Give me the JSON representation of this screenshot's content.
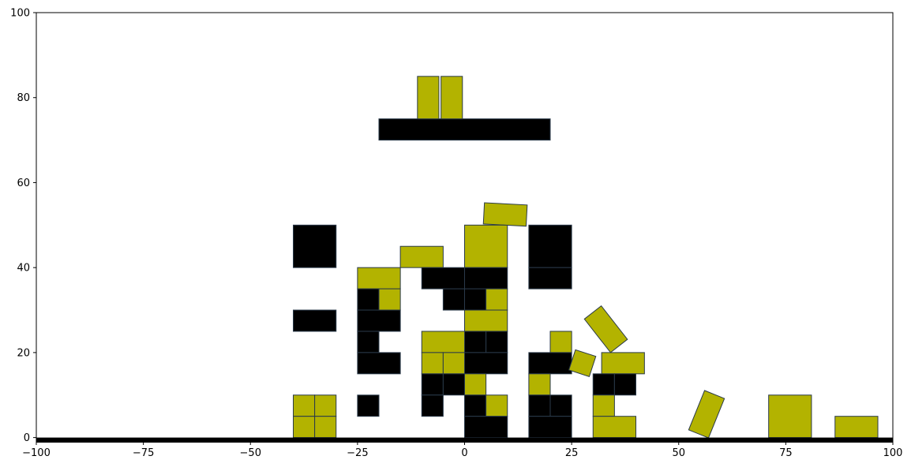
{
  "colors": {
    "background": "#ffffff",
    "axes": "#000000",
    "block_dark": "#000000",
    "block_yellow": "#b3b300",
    "block_edge": "#2a3a4a",
    "ground": "#000000"
  },
  "chart_data": {
    "type": "scatter",
    "title": "",
    "xlabel": "",
    "ylabel": "",
    "xlim": [
      -100,
      100
    ],
    "ylim": [
      -1,
      100
    ],
    "grid": false,
    "x_ticks": [
      -100,
      -75,
      -50,
      -25,
      0,
      25,
      50,
      75,
      100
    ],
    "x_tick_labels": [
      "−100",
      "−75",
      "−50",
      "−25",
      "0",
      "25",
      "50",
      "75",
      "100"
    ],
    "y_ticks": [
      0,
      20,
      40,
      60,
      80,
      100
    ],
    "y_tick_labels": [
      "0",
      "20",
      "40",
      "60",
      "80",
      "100"
    ],
    "ground": {
      "x0": -100,
      "x1": 100,
      "y0": -1,
      "y1": 0
    },
    "blocks": [
      {
        "x0": -20,
        "y0": 70,
        "x1": 20,
        "y1": 75,
        "color": "dark"
      },
      {
        "x0": -11,
        "y0": 75,
        "x1": -6,
        "y1": 85,
        "color": "yellow"
      },
      {
        "x0": -5.5,
        "y0": 75,
        "x1": -0.5,
        "y1": 85,
        "color": "yellow"
      },
      {
        "x0": -40,
        "y0": 40,
        "x1": -30,
        "y1": 50,
        "color": "dark"
      },
      {
        "x0": -40,
        "y0": 25,
        "x1": -30,
        "y1": 30,
        "color": "dark"
      },
      {
        "x0": -40,
        "y0": 5,
        "x1": -35,
        "y1": 10,
        "color": "yellow"
      },
      {
        "x0": -35,
        "y0": 5,
        "x1": -30,
        "y1": 10,
        "color": "yellow"
      },
      {
        "x0": -40,
        "y0": 0,
        "x1": -35,
        "y1": 5,
        "color": "yellow"
      },
      {
        "x0": -35,
        "y0": 0,
        "x1": -30,
        "y1": 5,
        "color": "yellow"
      },
      {
        "x0": -25,
        "y0": 35,
        "x1": -15,
        "y1": 40,
        "color": "yellow"
      },
      {
        "x0": -15,
        "y0": 40,
        "x1": -5,
        "y1": 45,
        "color": "yellow"
      },
      {
        "x0": -25,
        "y0": 30,
        "x1": -20,
        "y1": 35,
        "color": "dark"
      },
      {
        "x0": -20,
        "y0": 30,
        "x1": -15,
        "y1": 35,
        "color": "yellow"
      },
      {
        "x0": -25,
        "y0": 25,
        "x1": -15,
        "y1": 30,
        "color": "dark"
      },
      {
        "x0": -25,
        "y0": 20,
        "x1": -20,
        "y1": 25,
        "color": "dark"
      },
      {
        "x0": -25,
        "y0": 15,
        "x1": -15,
        "y1": 20,
        "color": "dark"
      },
      {
        "x0": -25,
        "y0": 5,
        "x1": -20,
        "y1": 10,
        "color": "dark"
      },
      {
        "x0": -10,
        "y0": 35,
        "x1": 0,
        "y1": 40,
        "color": "dark"
      },
      {
        "x0": -5,
        "y0": 30,
        "x1": 0,
        "y1": 35,
        "color": "dark"
      },
      {
        "x0": -10,
        "y0": 20,
        "x1": 0,
        "y1": 25,
        "color": "yellow"
      },
      {
        "x0": -10,
        "y0": 15,
        "x1": -5,
        "y1": 20,
        "color": "yellow"
      },
      {
        "x0": -5,
        "y0": 15,
        "x1": 0,
        "y1": 20,
        "color": "yellow"
      },
      {
        "x0": -10,
        "y0": 10,
        "x1": -5,
        "y1": 15,
        "color": "dark"
      },
      {
        "x0": -5,
        "y0": 10,
        "x1": 0,
        "y1": 15,
        "color": "dark"
      },
      {
        "x0": -10,
        "y0": 5,
        "x1": -5,
        "y1": 10,
        "color": "dark"
      },
      {
        "x0": 0,
        "y0": 40,
        "x1": 10,
        "y1": 50,
        "color": "yellow"
      },
      {
        "x0": 0,
        "y0": 35,
        "x1": 10,
        "y1": 40,
        "color": "dark"
      },
      {
        "x0": 0,
        "y0": 30,
        "x1": 5,
        "y1": 35,
        "color": "dark"
      },
      {
        "x0": 5,
        "y0": 30,
        "x1": 10,
        "y1": 35,
        "color": "yellow"
      },
      {
        "x0": 0,
        "y0": 25,
        "x1": 10,
        "y1": 30,
        "color": "yellow"
      },
      {
        "x0": 0,
        "y0": 20,
        "x1": 5,
        "y1": 25,
        "color": "dark"
      },
      {
        "x0": 5,
        "y0": 20,
        "x1": 10,
        "y1": 25,
        "color": "dark"
      },
      {
        "x0": 0,
        "y0": 15,
        "x1": 10,
        "y1": 20,
        "color": "dark"
      },
      {
        "x0": 0,
        "y0": 10,
        "x1": 5,
        "y1": 15,
        "color": "yellow"
      },
      {
        "x0": 0,
        "y0": 5,
        "x1": 5,
        "y1": 10,
        "color": "dark"
      },
      {
        "x0": 5,
        "y0": 5,
        "x1": 10,
        "y1": 10,
        "color": "yellow"
      },
      {
        "x0": 0,
        "y0": 0,
        "x1": 10,
        "y1": 5,
        "color": "dark"
      },
      {
        "x0": 15,
        "y0": 40,
        "x1": 25,
        "y1": 50,
        "color": "dark"
      },
      {
        "x0": 15,
        "y0": 35,
        "x1": 25,
        "y1": 40,
        "color": "dark"
      },
      {
        "x0": 20,
        "y0": 20,
        "x1": 25,
        "y1": 25,
        "color": "yellow"
      },
      {
        "x0": 15,
        "y0": 15,
        "x1": 25,
        "y1": 20,
        "color": "dark"
      },
      {
        "x0": 15,
        "y0": 10,
        "x1": 20,
        "y1": 15,
        "color": "yellow"
      },
      {
        "x0": 15,
        "y0": 5,
        "x1": 20,
        "y1": 10,
        "color": "dark"
      },
      {
        "x0": 20,
        "y0": 5,
        "x1": 25,
        "y1": 10,
        "color": "dark"
      },
      {
        "x0": 15,
        "y0": 0,
        "x1": 25,
        "y1": 5,
        "color": "dark"
      },
      {
        "x0": 32,
        "y0": 15,
        "x1": 42,
        "y1": 20,
        "color": "yellow"
      },
      {
        "x0": 30,
        "y0": 10,
        "x1": 35,
        "y1": 15,
        "color": "dark"
      },
      {
        "x0": 35,
        "y0": 10,
        "x1": 40,
        "y1": 15,
        "color": "dark"
      },
      {
        "x0": 30,
        "y0": 5,
        "x1": 35,
        "y1": 10,
        "color": "yellow"
      },
      {
        "x0": 30,
        "y0": 0,
        "x1": 40,
        "y1": 5,
        "color": "yellow"
      },
      {
        "x0": 71,
        "y0": 0,
        "x1": 81,
        "y1": 10,
        "color": "yellow"
      },
      {
        "x0": 86.5,
        "y0": 0,
        "x1": 96.5,
        "y1": 5,
        "color": "yellow"
      }
    ],
    "rotated_blocks": [
      {
        "cx": 9.5,
        "cy": 52.5,
        "w": 10,
        "h": 5,
        "angle": -3,
        "color": "yellow"
      },
      {
        "cx": 33,
        "cy": 25.5,
        "w": 5,
        "h": 10,
        "angle": 38,
        "color": "yellow"
      },
      {
        "cx": 27.5,
        "cy": 17.5,
        "w": 5,
        "h": 5,
        "angle": -18,
        "color": "yellow"
      },
      {
        "cx": 56.5,
        "cy": 5.5,
        "w": 5,
        "h": 10,
        "angle": -22,
        "color": "yellow"
      }
    ]
  }
}
